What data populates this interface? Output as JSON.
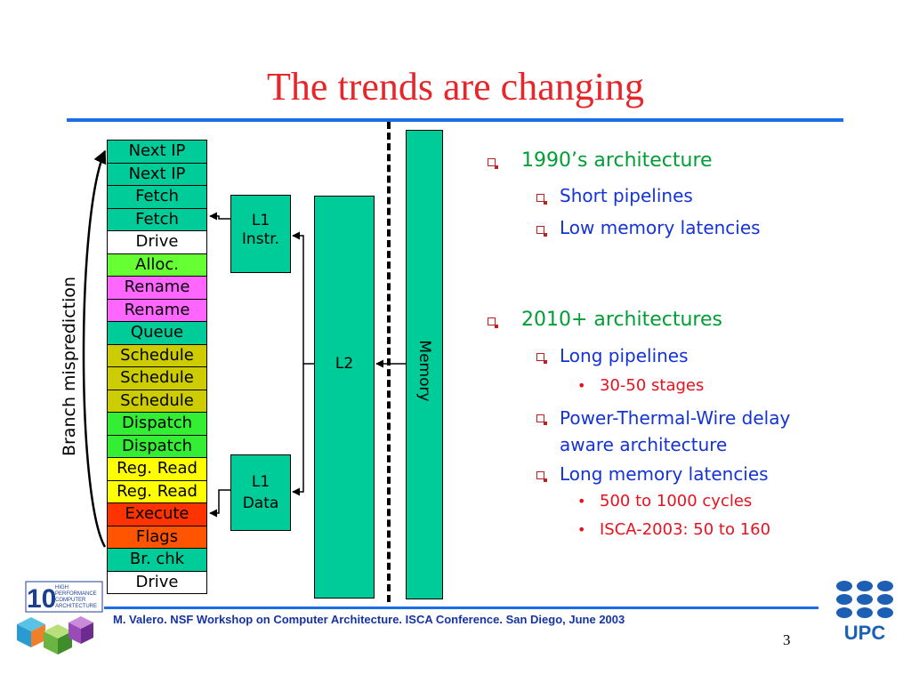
{
  "title": "The trends are changing",
  "pipeline": {
    "stages": [
      {
        "label": "Next IP",
        "color": "#00cc99"
      },
      {
        "label": "Next IP",
        "color": "#00cc99"
      },
      {
        "label": "Fetch",
        "color": "#00cc99"
      },
      {
        "label": "Fetch",
        "color": "#00cc99"
      },
      {
        "label": "Drive",
        "color": "#ffffff"
      },
      {
        "label": "Alloc.",
        "color": "#66ff33"
      },
      {
        "label": "Rename",
        "color": "#ff66ff"
      },
      {
        "label": "Rename",
        "color": "#ff66ff"
      },
      {
        "label": "Queue",
        "color": "#00cc99"
      },
      {
        "label": "Schedule",
        "color": "#cccc00"
      },
      {
        "label": "Schedule",
        "color": "#cccc00"
      },
      {
        "label": "Schedule",
        "color": "#cccc00"
      },
      {
        "label": "Dispatch",
        "color": "#33ee33"
      },
      {
        "label": "Dispatch",
        "color": "#33ee33"
      },
      {
        "label": "Reg. Read",
        "color": "#ffff00"
      },
      {
        "label": "Reg. Read",
        "color": "#ffff00"
      },
      {
        "label": "Execute",
        "color": "#ff3300"
      },
      {
        "label": "Flags",
        "color": "#ff5500"
      },
      {
        "label": "Br. chk",
        "color": "#00cc99"
      },
      {
        "label": "Drive",
        "color": "#ffffff"
      }
    ],
    "side_label": "Branch misprediction"
  },
  "caches": {
    "l1_instr": [
      "L1",
      "Instr."
    ],
    "l1_data": [
      "L1",
      "Data"
    ],
    "l2": "L2",
    "memory": "Memory"
  },
  "bullets": {
    "era1": {
      "heading": "1990’s architecture",
      "items": [
        "Short pipelines",
        "Low memory latencies"
      ]
    },
    "era2": {
      "heading": "2010+ architectures",
      "long_pipelines": "Long pipelines",
      "stages": "30-50 stages",
      "power_line1": "Power-Thermal-Wire delay",
      "power_line2": "aware architecture",
      "long_latencies": "Long memory latencies",
      "cycles": "500 to 1000 cycles",
      "isca": "ISCA-2003: 50 to 160"
    }
  },
  "footer": {
    "text": "M. Valero. NSF Workshop on Computer Architecture. ISCA Conference. San Diego, June 2003",
    "page": "3"
  },
  "logos": {
    "left": {
      "number": "10",
      "line1": "HIGH",
      "line2": "PERFORMANCE",
      "line3": "COMPUTER",
      "line4": "ARCHITECTURE"
    },
    "right": {
      "text": "UPC"
    }
  },
  "colors": {
    "title": "#e8262a",
    "rule": "#1a6ee6",
    "cache": "#00cc99",
    "level1": "#009e35",
    "level2": "#1433d6",
    "level3": "#e8111d"
  }
}
